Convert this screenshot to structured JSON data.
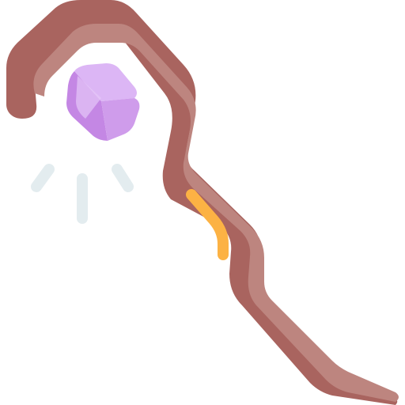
{
  "illustration": {
    "icon": "magic-staff-icon",
    "parts": {
      "staff": "staff-icon",
      "crystal": "crystal-icon",
      "sparkles": "sparkle-icon",
      "wrap": "staff-wrap-icon"
    },
    "colors": {
      "staff_dark": "#a9645f",
      "staff_light": "#bd857f",
      "wrap": "#fcb244",
      "crystal_light": "#dcb6f5",
      "crystal_mid": "#cf9ceb",
      "crystal_dark": "#c487e4",
      "sparkle": "#e3ecef"
    }
  }
}
